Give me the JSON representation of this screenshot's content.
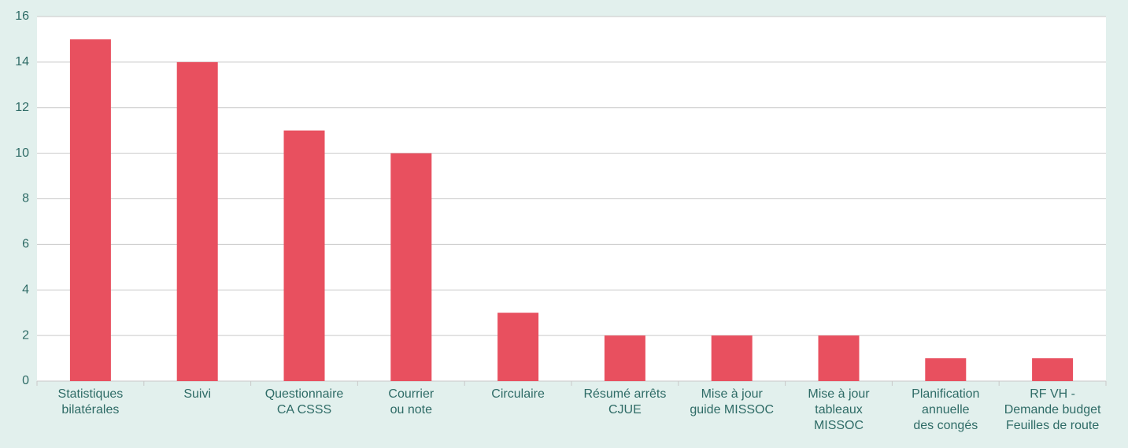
{
  "chart_data": {
    "type": "bar",
    "categories": [
      "Statistiques\nbilatérales",
      "Suivi",
      "Questionnaire\nCA CSSS",
      "Courrier\nou note",
      "Circulaire",
      "Résumé arrêts\nCJUE",
      "Mise à jour\nguide MISSOC",
      "Mise à jour\ntableaux\nMISSOC",
      "Planification\nannuelle\ndes congés",
      "RF VH -\nDemande budget\nFeuilles de route"
    ],
    "values": [
      15,
      14,
      11,
      10,
      3,
      2,
      2,
      2,
      1,
      1
    ],
    "color": "#e8505f",
    "ylim": [
      0,
      16
    ],
    "yticks": [
      0,
      2,
      4,
      6,
      8,
      10,
      12,
      14,
      16
    ],
    "grid": true
  }
}
